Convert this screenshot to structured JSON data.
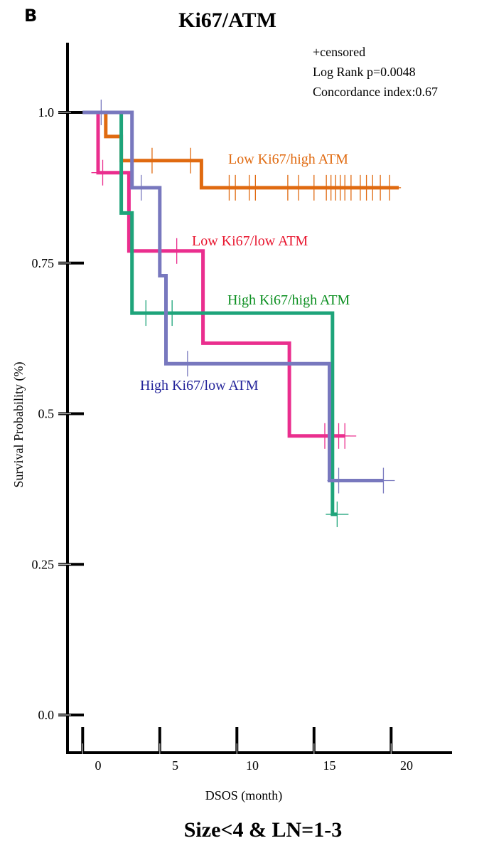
{
  "panel_label": "B",
  "chart_data": {
    "type": "line",
    "title": "Ki67/ATM",
    "subtitle": "Size<4 & LN=1-3",
    "xlabel": "DSOS (month)",
    "ylabel": "Survival Probability (%)",
    "xlim": [
      -1,
      22.5
    ],
    "ylim": [
      0,
      1.1
    ],
    "xticks": [
      "0",
      "5",
      "10",
      "15",
      "20"
    ],
    "yticks": [
      "0.0",
      "0.25",
      "0.5",
      "0.75",
      "1.0"
    ],
    "grid": false,
    "annotations": [
      "+censored",
      "Log Rank p=0.0048",
      "Concordance index:0.67"
    ],
    "series": [
      {
        "name": "Low Ki67/high ATM",
        "color": "#e06a10",
        "steps": [
          [
            -1,
            1.0
          ],
          [
            0.5,
            1.0
          ],
          [
            0.5,
            0.96
          ],
          [
            1.5,
            0.96
          ],
          [
            1.5,
            0.92
          ],
          [
            6.7,
            0.92
          ],
          [
            6.7,
            0.875
          ],
          [
            19.5,
            0.875
          ]
        ],
        "censored": [
          [
            3.5,
            0.92
          ],
          [
            6.0,
            0.92
          ],
          [
            8.5,
            0.875
          ],
          [
            8.9,
            0.875
          ],
          [
            9.8,
            0.875
          ],
          [
            10.2,
            0.875
          ],
          [
            12.3,
            0.875
          ],
          [
            13.0,
            0.875
          ],
          [
            14.0,
            0.875
          ],
          [
            14.8,
            0.875
          ],
          [
            15.1,
            0.875
          ],
          [
            15.4,
            0.875
          ],
          [
            15.7,
            0.875
          ],
          [
            16.0,
            0.875
          ],
          [
            16.4,
            0.875
          ],
          [
            17.0,
            0.875
          ],
          [
            17.4,
            0.875
          ],
          [
            17.8,
            0.875
          ],
          [
            18.3,
            0.875
          ],
          [
            18.9,
            0.875
          ]
        ]
      },
      {
        "name": "Low Ki67/low ATM",
        "color": "#ea2e8e",
        "steps": [
          [
            -1,
            1.0
          ],
          [
            0,
            1.0
          ],
          [
            0,
            0.9
          ],
          [
            2.0,
            0.9
          ],
          [
            2.0,
            0.77
          ],
          [
            6.8,
            0.77
          ],
          [
            6.8,
            0.617
          ],
          [
            12.4,
            0.617
          ],
          [
            12.4,
            0.463
          ],
          [
            16.0,
            0.463
          ]
        ],
        "censored": [
          [
            0.3,
            0.9
          ],
          [
            5.1,
            0.77
          ],
          [
            14.7,
            0.463
          ],
          [
            15.6,
            0.463
          ],
          [
            16.0,
            0.463
          ]
        ]
      },
      {
        "name": "High Ki67/high ATM",
        "color": "#1ea47a",
        "steps": [
          [
            -1,
            1.0
          ],
          [
            1.5,
            1.0
          ],
          [
            1.5,
            0.833
          ],
          [
            2.2,
            0.833
          ],
          [
            2.2,
            0.667
          ],
          [
            15.2,
            0.667
          ],
          [
            15.2,
            0.333
          ],
          [
            15.5,
            0.333
          ]
        ],
        "censored": [
          [
            3.1,
            0.667
          ],
          [
            4.8,
            0.667
          ],
          [
            15.5,
            0.333
          ]
        ]
      },
      {
        "name": "High Ki67/low ATM",
        "color": "#7878be",
        "steps": [
          [
            -1,
            1.0
          ],
          [
            2.2,
            1.0
          ],
          [
            2.2,
            0.875
          ],
          [
            4.0,
            0.875
          ],
          [
            4.0,
            0.729
          ],
          [
            4.4,
            0.729
          ],
          [
            4.4,
            0.583
          ],
          [
            15.0,
            0.583
          ],
          [
            15.0,
            0.389
          ],
          [
            18.5,
            0.389
          ]
        ],
        "censored": [
          [
            0.2,
            1.0
          ],
          [
            2.8,
            0.875
          ],
          [
            5.8,
            0.583
          ],
          [
            15.6,
            0.389
          ],
          [
            18.5,
            0.389
          ]
        ]
      }
    ]
  }
}
